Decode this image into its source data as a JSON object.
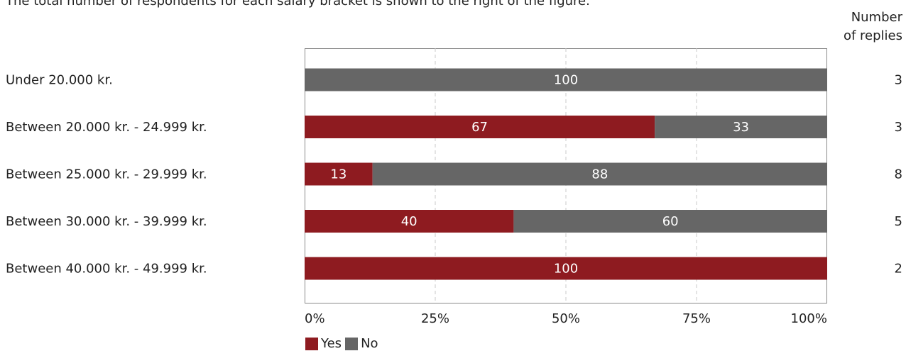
{
  "caption": "The total number of respondents for each salary bracket is shown to the right of the figure.",
  "replies_header": {
    "line1": "Number",
    "line2": "of replies"
  },
  "chart_data": {
    "type": "bar",
    "orientation": "horizontal",
    "stacked": true,
    "categories": [
      "Under 20.000 kr.",
      "Between 20.000 kr. - 24.999 kr.",
      "Between 25.000 kr. - 29.999 kr.",
      "Between 30.000 kr. - 39.999 kr.",
      "Between 40.000 kr. - 49.999 kr."
    ],
    "series": [
      {
        "name": "Yes",
        "color": "#8e1b20",
        "values": [
          0,
          67,
          13,
          40,
          100
        ]
      },
      {
        "name": "No",
        "color": "#666666",
        "values": [
          100,
          33,
          88,
          60,
          0
        ]
      }
    ],
    "number_of_replies": [
      3,
      3,
      8,
      5,
      2
    ],
    "xlim": [
      0,
      100
    ],
    "xticks": [
      "0%",
      "25%",
      "50%",
      "75%",
      "100%"
    ],
    "grid": "vertical dashed",
    "legend": "bottom"
  }
}
